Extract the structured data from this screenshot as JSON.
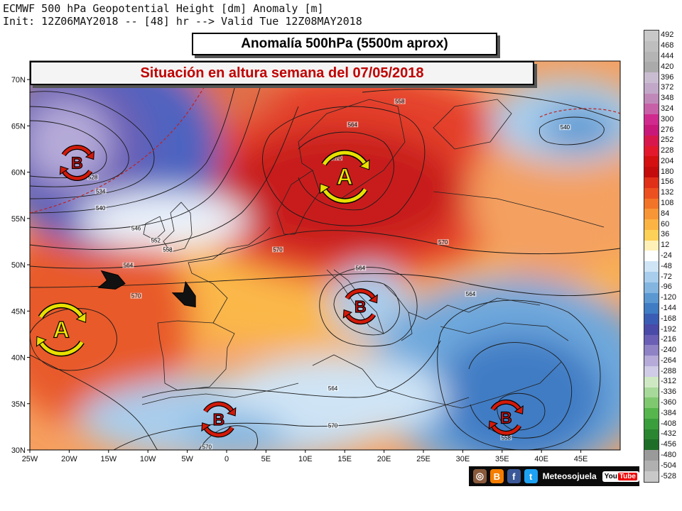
{
  "header": {
    "line1": "ECMWF 500 hPa Geopotential Height [dm] Anomaly [m]",
    "line2": "Init: 12Z06MAY2018 -- [48] hr --> Valid Tue 12Z08MAY2018"
  },
  "banners": {
    "title": "Anomalía 500hPa (5500m aprox)",
    "subtitle": "Situación en altura semana del 07/05/2018"
  },
  "map": {
    "lon_range": [
      -25,
      50
    ],
    "lat_range": [
      30,
      72
    ],
    "lat_ticks": [
      "70N",
      "65N",
      "60N",
      "55N",
      "50N",
      "45N",
      "40N",
      "35N",
      "30N"
    ],
    "lon_ticks": [
      "25W",
      "20W",
      "15W",
      "10W",
      "5W",
      "0",
      "5E",
      "10E",
      "15E",
      "20E",
      "25E",
      "30E",
      "35E",
      "40E",
      "45E"
    ],
    "contour_labels": [
      {
        "text": "528",
        "lon": -17,
        "lat": 59.3
      },
      {
        "text": "534",
        "lon": -16,
        "lat": 57.8
      },
      {
        "text": "540",
        "lon": -16,
        "lat": 56.0
      },
      {
        "text": "546",
        "lon": -11.5,
        "lat": 53.8
      },
      {
        "text": "552",
        "lon": -9,
        "lat": 52.5
      },
      {
        "text": "558",
        "lon": -7.5,
        "lat": 51.5
      },
      {
        "text": "564",
        "lon": -12.5,
        "lat": 49.8
      },
      {
        "text": "570",
        "lon": -11.5,
        "lat": 46.5
      },
      {
        "text": "570",
        "lon": 6.5,
        "lat": 51.5
      },
      {
        "text": "570",
        "lon": 14,
        "lat": 61.4
      },
      {
        "text": "564",
        "lon": 16,
        "lat": 65.0
      },
      {
        "text": "558",
        "lon": 22,
        "lat": 67.5
      },
      {
        "text": "570",
        "lon": 27.5,
        "lat": 52.3
      },
      {
        "text": "564",
        "lon": 31,
        "lat": 46.7
      },
      {
        "text": "564",
        "lon": 17,
        "lat": 49.5
      },
      {
        "text": "564",
        "lon": 13.5,
        "lat": 36.5
      },
      {
        "text": "570",
        "lon": 13.5,
        "lat": 32.5
      },
      {
        "text": "570",
        "lon": -2.5,
        "lat": 30.2
      },
      {
        "text": "558",
        "lon": 35.5,
        "lat": 31.2
      },
      {
        "text": "540",
        "lon": 43,
        "lat": 64.7
      }
    ],
    "systems": [
      {
        "label": "B",
        "type": "low",
        "lon": -19,
        "lat": 61
      },
      {
        "label": "A",
        "type": "high",
        "lon": 15,
        "lat": 59.5
      },
      {
        "label": "A",
        "type": "high",
        "lon": -21,
        "lat": 43
      },
      {
        "label": "B",
        "type": "low",
        "lon": 17,
        "lat": 45.5
      },
      {
        "label": "B",
        "type": "low",
        "lon": -1,
        "lat": 33.3
      },
      {
        "label": "B",
        "type": "low",
        "lon": 35.5,
        "lat": 33.5
      }
    ],
    "flow_arrows": [
      {
        "lon": -14.5,
        "lat": 48.2,
        "dir": "east"
      },
      {
        "lon": -5,
        "lat": 46.5,
        "dir": "southeast"
      }
    ],
    "colors": {
      "high_ring": "#e8e000",
      "low_ring": "#d21a0a",
      "letter_high": "#f2e600",
      "letter_low": "#c81010"
    }
  },
  "colorbar": {
    "labels": [
      "492",
      "468",
      "444",
      "420",
      "396",
      "372",
      "348",
      "324",
      "300",
      "276",
      "252",
      "228",
      "204",
      "180",
      "156",
      "132",
      "108",
      "84",
      "60",
      "36",
      "12",
      "-24",
      "-48",
      "-72",
      "-96",
      "-120",
      "-144",
      "-168",
      "-192",
      "-216",
      "-240",
      "-264",
      "-288",
      "-312",
      "-336",
      "-360",
      "-384",
      "-408",
      "-432",
      "-456",
      "-480",
      "-504",
      "-528"
    ],
    "colors": [
      "#c8c8c8",
      "#bebebe",
      "#b4b4b4",
      "#aaaaaa",
      "#c9bcd0",
      "#c2a8c8",
      "#c088b8",
      "#c860a8",
      "#d02a8e",
      "#c8187a",
      "#d8184c",
      "#e4182c",
      "#d41010",
      "#c40c0c",
      "#e03018",
      "#ec5020",
      "#f27428",
      "#f69636",
      "#fbb444",
      "#fdd058",
      "#fff0b8",
      "#ffffff",
      "#cfe4f5",
      "#a9cdec",
      "#83b5e0",
      "#5b98d2",
      "#3f7cc4",
      "#3b5cb4",
      "#4a4aa8",
      "#6a5fb5",
      "#8f82c5",
      "#b5aad8",
      "#d0cbe6",
      "#cfe8c4",
      "#a7d99a",
      "#7fc870",
      "#56b54c",
      "#3a9e3c",
      "#2a8630",
      "#1f6e28",
      "#9a9a9a",
      "#b0b0b0",
      "#c8c8c8"
    ]
  },
  "footer": {
    "brand": "Meteosojuela",
    "youtube_a": "You",
    "youtube_b": "Tube",
    "icons": [
      "instagram-icon",
      "blogger-icon",
      "facebook-icon",
      "twitter-icon",
      "youtube-icon"
    ]
  }
}
